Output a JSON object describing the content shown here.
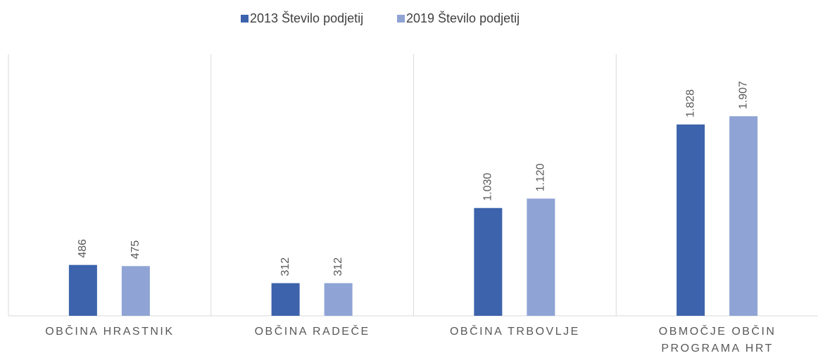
{
  "chart_data": {
    "type": "bar",
    "categories": [
      "OBČINA HRASTNIK",
      "OBČINA RADEČE",
      "OBČINA TRBOVLJE",
      "OBMOČJE OBČIN PROGRAMA HRT"
    ],
    "series": [
      {
        "name": "2013 Število podjetij",
        "color": "#3c63ac",
        "values": [
          486,
          312,
          1030,
          1828
        ],
        "value_labels": [
          "486",
          "312",
          "1.030",
          "1.828"
        ]
      },
      {
        "name": "2019 Število podjetij",
        "color": "#8fa4d4",
        "values": [
          475,
          312,
          1120,
          1907
        ],
        "value_labels": [
          "475",
          "312",
          "1.120",
          "1.907"
        ]
      }
    ],
    "ylim": [
      0,
      2500
    ],
    "legend": "top"
  }
}
